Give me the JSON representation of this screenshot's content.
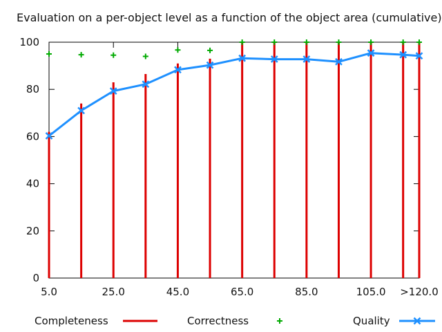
{
  "chart_data": {
    "type": "bar",
    "title": "Evaluation on a per-object level as a function of the object area (cumulative)",
    "xlabel": "",
    "ylabel": "",
    "ylim": [
      0,
      100
    ],
    "yticks": [
      0,
      20,
      40,
      60,
      80,
      100
    ],
    "x": [
      5,
      15,
      25,
      35,
      45,
      55,
      65,
      75,
      85,
      95,
      105,
      115,
      120
    ],
    "xticks": [
      {
        "x": 5,
        "label": "5.0"
      },
      {
        "x": 25,
        "label": "25.0"
      },
      {
        "x": 45,
        "label": "45.0"
      },
      {
        "x": 65,
        "label": "65.0"
      },
      {
        "x": 85,
        "label": "85.0"
      },
      {
        "x": 105,
        "label": "105.0"
      },
      {
        "x": 120,
        "label": ">120.0"
      }
    ],
    "series": [
      {
        "name": "Completeness",
        "style": "impulses",
        "color": "#dd0000",
        "values": [
          62,
          74,
          83,
          86.5,
          91,
          93,
          100,
          100,
          100,
          100,
          100,
          100,
          100
        ]
      },
      {
        "name": "Correctness",
        "style": "points",
        "color": "#00aa00",
        "values": [
          95,
          94.7,
          94.5,
          94,
          96.7,
          96.5,
          100,
          100,
          100,
          100,
          100,
          100,
          100
        ]
      },
      {
        "name": "Quality",
        "style": "linespoints",
        "color": "#1e90ff",
        "values": [
          60.3,
          71,
          79.3,
          82.2,
          88.3,
          90.3,
          93.2,
          92.8,
          92.8,
          91.7,
          95.4,
          94.7,
          94.2
        ]
      }
    ],
    "legend": "bottom",
    "grid": false
  }
}
